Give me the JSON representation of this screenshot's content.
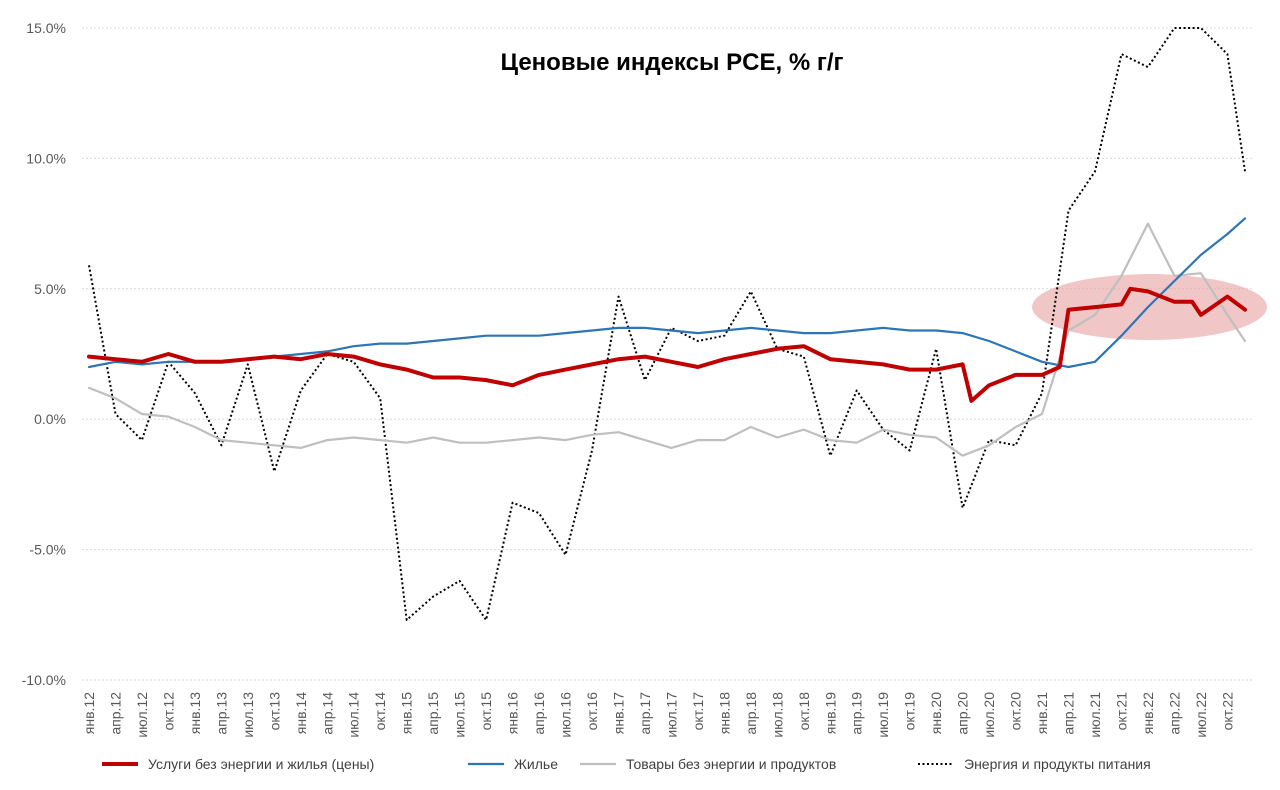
{
  "chart_data": {
    "type": "line",
    "title": "Ценовые индексы PCE, % г/г",
    "xlabel": "",
    "ylabel": "",
    "ylim": [
      -10,
      15
    ],
    "y_ticks": [
      "15.0%",
      "10.0%",
      "5.0%",
      "0.0%",
      "-5.0%",
      "-10.0%"
    ],
    "y_tick_values": [
      15,
      10,
      5,
      0,
      -5,
      -10
    ],
    "x_ticks": [
      "янв.12",
      "апр.12",
      "июл.12",
      "окт.12",
      "янв.13",
      "апр.13",
      "июл.13",
      "окт.13",
      "янв.14",
      "апр.14",
      "июл.14",
      "окт.14",
      "янв.15",
      "апр.15",
      "июл.15",
      "окт.15",
      "янв.16",
      "апр.16",
      "июл.16",
      "окт.16",
      "янв.17",
      "апр.17",
      "июл.17",
      "окт.17",
      "янв.18",
      "апр.18",
      "июл.18",
      "окт.18",
      "янв.19",
      "апр.19",
      "июл.19",
      "окт.19",
      "янв.20",
      "апр.20",
      "июл.20",
      "окт.20",
      "янв.21",
      "апр.21",
      "июл.21",
      "окт.21",
      "янв.22",
      "апр.22",
      "июл.22",
      "окт.22"
    ],
    "x_range": [
      "янв.12",
      "дек.22"
    ],
    "grid": "horizontal dotted",
    "legend_position": "bottom",
    "series": [
      {
        "name": "Услуги без энергии и жилья (цены)",
        "color": "#c00000",
        "style": "solid-thick",
        "x": [
          "янв.12",
          "апр.12",
          "июл.12",
          "окт.12",
          "янв.13",
          "апр.13",
          "июл.13",
          "окт.13",
          "янв.14",
          "апр.14",
          "июл.14",
          "окт.14",
          "янв.15",
          "апр.15",
          "июл.15",
          "окт.15",
          "янв.16",
          "апр.16",
          "июл.16",
          "окт.16",
          "янв.17",
          "апр.17",
          "июл.17",
          "окт.17",
          "янв.18",
          "апр.18",
          "июл.18",
          "окт.18",
          "янв.19",
          "апр.19",
          "июл.19",
          "окт.19",
          "янв.20",
          "апр.20",
          "май.20",
          "июл.20",
          "окт.20",
          "янв.21",
          "мар.21",
          "апр.21",
          "июл.21",
          "окт.21",
          "ноя.21",
          "янв.22",
          "апр.22",
          "июн.22",
          "июл.22",
          "окт.22",
          "дек.22"
        ],
        "values": [
          2.4,
          2.3,
          2.2,
          2.5,
          2.2,
          2.2,
          2.3,
          2.4,
          2.3,
          2.5,
          2.4,
          2.1,
          1.9,
          1.6,
          1.6,
          1.5,
          1.3,
          1.7,
          1.9,
          2.1,
          2.3,
          2.4,
          2.2,
          2.0,
          2.3,
          2.5,
          2.7,
          2.8,
          2.3,
          2.2,
          2.1,
          1.9,
          1.9,
          2.1,
          0.7,
          1.3,
          1.7,
          1.7,
          2.0,
          4.2,
          4.3,
          4.4,
          5.0,
          4.9,
          4.5,
          4.5,
          4.0,
          4.7,
          4.2
        ]
      },
      {
        "name": "Жилье",
        "color": "#2e75b6",
        "style": "solid",
        "x": [
          "янв.12",
          "апр.12",
          "июл.12",
          "окт.12",
          "янв.13",
          "апр.13",
          "июл.13",
          "окт.13",
          "янв.14",
          "апр.14",
          "июл.14",
          "окт.14",
          "янв.15",
          "апр.15",
          "июл.15",
          "окт.15",
          "янв.16",
          "апр.16",
          "июл.16",
          "окт.16",
          "янв.17",
          "апр.17",
          "июл.17",
          "окт.17",
          "янв.18",
          "апр.18",
          "июл.18",
          "окт.18",
          "янв.19",
          "апр.19",
          "июл.19",
          "окт.19",
          "янв.20",
          "апр.20",
          "июл.20",
          "окт.20",
          "янв.21",
          "апр.21",
          "июл.21",
          "окт.21",
          "янв.22",
          "апр.22",
          "июл.22",
          "окт.22",
          "дек.22"
        ],
        "values": [
          2.0,
          2.2,
          2.1,
          2.2,
          2.2,
          2.2,
          2.3,
          2.4,
          2.5,
          2.6,
          2.8,
          2.9,
          2.9,
          3.0,
          3.1,
          3.2,
          3.2,
          3.2,
          3.3,
          3.4,
          3.5,
          3.5,
          3.4,
          3.3,
          3.4,
          3.5,
          3.4,
          3.3,
          3.3,
          3.4,
          3.5,
          3.4,
          3.4,
          3.3,
          3.0,
          2.6,
          2.2,
          2.0,
          2.2,
          3.2,
          4.3,
          5.3,
          6.3,
          7.1,
          7.7
        ]
      },
      {
        "name": "Товары без энергии и продуктов",
        "color": "#bfbfbf",
        "style": "solid",
        "x": [
          "янв.12",
          "апр.12",
          "июл.12",
          "окт.12",
          "янв.13",
          "апр.13",
          "июл.13",
          "окт.13",
          "янв.14",
          "апр.14",
          "июл.14",
          "окт.14",
          "янв.15",
          "апр.15",
          "июл.15",
          "окт.15",
          "янв.16",
          "апр.16",
          "июл.16",
          "окт.16",
          "янв.17",
          "апр.17",
          "июл.17",
          "окт.17",
          "янв.18",
          "апр.18",
          "июл.18",
          "окт.18",
          "янв.19",
          "апр.19",
          "июл.19",
          "окт.19",
          "янв.20",
          "апр.20",
          "июл.20",
          "окт.20",
          "янв.21",
          "апр.21",
          "июл.21",
          "окт.21",
          "янв.22",
          "апр.22",
          "июл.22",
          "окт.22",
          "дек.22"
        ],
        "values": [
          1.2,
          0.8,
          0.2,
          0.1,
          -0.3,
          -0.8,
          -0.9,
          -1.0,
          -1.1,
          -0.8,
          -0.7,
          -0.8,
          -0.9,
          -0.7,
          -0.9,
          -0.9,
          -0.8,
          -0.7,
          -0.8,
          -0.6,
          -0.5,
          -0.8,
          -1.1,
          -0.8,
          -0.8,
          -0.3,
          -0.7,
          -0.4,
          -0.8,
          -0.9,
          -0.4,
          -0.6,
          -0.7,
          -1.4,
          -1.0,
          -0.3,
          0.2,
          3.4,
          4.0,
          5.5,
          7.5,
          5.5,
          5.6,
          4.0,
          3.0
        ]
      },
      {
        "name": "Энергия и продукты питания",
        "color": "#000000",
        "style": "dotted",
        "x": [
          "янв.12",
          "апр.12",
          "июл.12",
          "окт.12",
          "янв.13",
          "апр.13",
          "июл.13",
          "окт.13",
          "янв.14",
          "апр.14",
          "июл.14",
          "окт.14",
          "янв.15",
          "апр.15",
          "июл.15",
          "окт.15",
          "янв.16",
          "апр.16",
          "июл.16",
          "окт.16",
          "янв.17",
          "апр.17",
          "июл.17",
          "окт.17",
          "янв.18",
          "апр.18",
          "июл.18",
          "окт.18",
          "янв.19",
          "апр.19",
          "июл.19",
          "окт.19",
          "янв.20",
          "апр.20",
          "июл.20",
          "окт.20",
          "янв.21",
          "апр.21",
          "июл.21",
          "окт.21",
          "янв.22",
          "апр.22",
          "июл.22",
          "окт.22",
          "дек.22"
        ],
        "values": [
          5.9,
          0.2,
          -0.8,
          2.2,
          1.0,
          -1.0,
          2.1,
          -2.0,
          1.1,
          2.5,
          2.2,
          0.8,
          -7.7,
          -6.8,
          -6.2,
          -7.7,
          -3.2,
          -3.6,
          -5.2,
          -1.2,
          4.7,
          1.5,
          3.5,
          3.0,
          3.2,
          4.9,
          2.7,
          2.4,
          -1.4,
          1.1,
          -0.4,
          -1.2,
          2.7,
          -3.4,
          -0.8,
          -1.0,
          1.0,
          8.0,
          9.5,
          14.0,
          13.5,
          15.5,
          15.0,
          14.0,
          9.5
        ]
      }
    ],
    "annotations": [
      {
        "type": "ellipse-highlight",
        "color": "#e8a0a0",
        "x_from": "янв.21",
        "x_to": "дек.22",
        "y_center": 4.3
      }
    ]
  }
}
